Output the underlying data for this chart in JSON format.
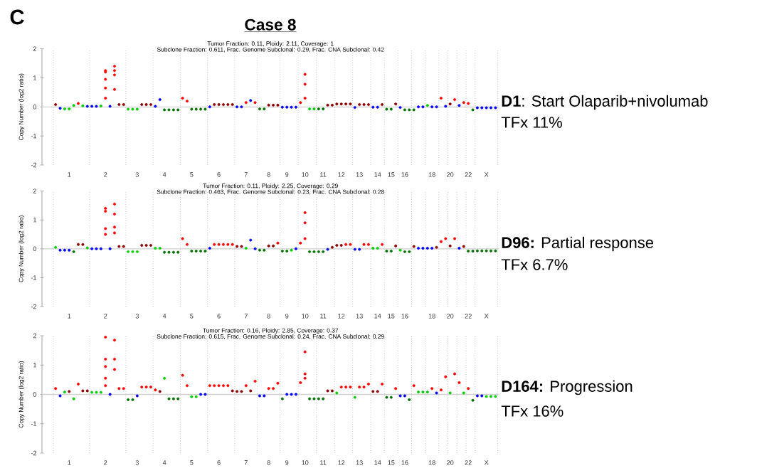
{
  "chart_data": [
    {
      "type": "scatter",
      "title": "Case 8",
      "subtitle": "Tumor Fraction: 0.11, Ploidy: 2.11, Coverage: 1",
      "ylabel": "Copy Number (log2 ratio)",
      "marker": "circle",
      "ylim": [
        -2,
        2
      ],
      "yticks": [
        -2,
        -1,
        0,
        1,
        2
      ],
      "categories": [
        null,
        null,
        null,
        "1",
        null,
        null,
        null,
        null,
        null,
        null,
        null,
        "2",
        null,
        null,
        null,
        null,
        null,
        null,
        "3",
        null,
        null,
        null,
        null,
        null,
        "4",
        null,
        null,
        null,
        null,
        null,
        "5",
        null,
        null,
        null,
        null,
        null,
        "6",
        null,
        null,
        null,
        null,
        null,
        "7",
        null,
        null,
        null,
        null,
        "8",
        null,
        null,
        null,
        "9",
        null,
        null,
        null,
        "10",
        null,
        null,
        null,
        "11",
        null,
        null,
        null,
        "12",
        null,
        null,
        null,
        "13",
        null,
        null,
        null,
        "14",
        null,
        null,
        "15",
        null,
        null,
        "16",
        null,
        null,
        null,
        null,
        null,
        "18",
        null,
        null,
        null,
        "20",
        null,
        null,
        null,
        "22",
        null,
        null,
        null,
        "X",
        null,
        null
      ],
      "annotations": [
        "Subclone Fraction: 0.611, Frac. Genome Subclonal: 0.29, Frac. CNA Subclonal: 0.42",
        "**D1**: Start Olaparib+nivolumab",
        "TFx 11%",
        "C"
      ],
      "ref_lines": [
        {
          "axis": "y",
          "value": 0,
          "color": "#d0d0d0",
          "line_style": "solid"
        }
      ],
      "series": [
        {
          "values": [
            0.08,
            -0.05,
            -0.07,
            -0.07,
            0.05,
            0.12,
            0.04,
            0.02,
            0.02,
            0.02,
            0.03,
            0.3,
            0.02,
            0.6,
            0.08,
            0.08,
            -0.08,
            -0.08,
            -0.08,
            0.08,
            0.08,
            0.08,
            0.02,
            0.25,
            -0.1,
            -0.1,
            -0.1,
            -0.1,
            0.3,
            0.2,
            -0.08,
            -0.08,
            -0.08,
            -0.08,
            0,
            0.08,
            0.08,
            0.08,
            0.08,
            0.08,
            0,
            0,
            0.15,
            0.22,
            0.15,
            -0.07,
            -0.07,
            0.06,
            0.06,
            0.06,
            -0.01,
            -0.01,
            -0.01,
            -0.01,
            0.15,
            0.3,
            -0.07,
            -0.07,
            -0.07,
            -0.07,
            0.06,
            0.06,
            0.1,
            0.1,
            0.1,
            0.1,
            -0.02,
            0.08,
            0.08,
            0.08,
            -0.01,
            -0.01,
            0.08,
            -0.08,
            -0.08,
            0.1,
            -0.02,
            -0.1,
            -0.1,
            -0.1,
            0,
            0,
            0.05,
            0,
            0,
            0.3,
            0.02,
            0.1,
            0.25,
            0.05,
            0.15,
            0.12,
            -0.1,
            -0.03,
            -0.03,
            -0.03,
            -0.03,
            -0.03
          ],
          "colors": [
            "#8b0000",
            "#0000ff",
            "#00cc00",
            "#00cc00",
            "#00cc00",
            "#ff0000",
            "#00cc00",
            "#0000ff",
            "#0000ff",
            "#0000ff",
            "#00cc00",
            "#ff0000",
            "#0000ff",
            "#ff0000",
            "#8b0000",
            "#8b0000",
            "#00cc00",
            "#00cc00",
            "#00cc00",
            "#8b0000",
            "#8b0000",
            "#8b0000",
            "#0000ff",
            "#0000ff",
            "#007000",
            "#007000",
            "#007000",
            "#007000",
            "#ff0000",
            "#ff0000",
            "#007000",
            "#007000",
            "#007000",
            "#007000",
            "#0000ff",
            "#8b0000",
            "#8b0000",
            "#8b0000",
            "#8b0000",
            "#8b0000",
            "#0000ff",
            "#0000ff",
            "#ff0000",
            "#0000ff",
            "#ff0000",
            "#007000",
            "#007000",
            "#8b0000",
            "#8b0000",
            "#8b0000",
            "#0000ff",
            "#0000ff",
            "#0000ff",
            "#0000ff",
            "#ff0000",
            "#ff0000",
            "#00cc00",
            "#00cc00",
            "#007000",
            "#007000",
            "#8b0000",
            "#8b0000",
            "#8b0000",
            "#8b0000",
            "#8b0000",
            "#8b0000",
            "#0000ff",
            "#8b0000",
            "#8b0000",
            "#8b0000",
            "#0000ff",
            "#0000ff",
            "#8b0000",
            "#007000",
            "#007000",
            "#8b0000",
            "#0000ff",
            "#007000",
            "#007000",
            "#007000",
            "#0000ff",
            "#0000ff",
            "#00cc00",
            "#0000ff",
            "#0000ff",
            "#ff0000",
            "#0000ff",
            "#8b0000",
            "#ff0000",
            "#0000ff",
            "#ff0000",
            "#ff0000",
            "#007000",
            "#0000ff",
            "#0000ff",
            "#0000ff",
            "#0000ff",
            "#0000ff"
          ]
        },
        {
          "color": "#ff0000",
          "values": [
            null,
            null,
            null,
            null,
            null,
            null,
            null,
            null,
            null,
            null,
            null,
            1.25,
            null,
            1.4,
            null,
            null,
            null,
            null,
            null,
            null,
            null,
            null,
            null,
            null,
            null,
            null,
            null,
            null,
            null,
            null,
            null,
            null,
            null,
            null,
            null,
            null,
            null,
            null,
            null,
            null,
            null,
            null,
            null,
            null,
            null,
            null,
            null,
            null,
            null,
            null,
            null,
            null,
            null,
            null,
            null,
            1.12,
            null,
            null,
            null,
            null,
            null,
            null,
            null,
            null,
            null,
            null,
            null,
            null,
            null,
            null,
            null,
            null,
            null,
            null,
            null,
            null,
            null,
            null,
            null,
            null,
            null,
            null,
            null,
            null,
            null,
            null,
            null,
            null,
            null,
            null,
            null,
            null,
            null,
            null,
            null,
            null,
            null,
            null
          ]
        },
        {
          "color": "#ff0000",
          "values": [
            null,
            null,
            null,
            null,
            null,
            null,
            null,
            null,
            null,
            null,
            null,
            1.2,
            null,
            1.25,
            null,
            null,
            null,
            null,
            null,
            null,
            null,
            null,
            null,
            null,
            null,
            null,
            null,
            null,
            null,
            null,
            null,
            null,
            null,
            null,
            null,
            null,
            null,
            null,
            null,
            null,
            null,
            null,
            null,
            null,
            null,
            null,
            null,
            null,
            null,
            null,
            null,
            null,
            null,
            null,
            null,
            0.78,
            null,
            null,
            null,
            null,
            null,
            null,
            null,
            null,
            null,
            null,
            null,
            null,
            null,
            null,
            null,
            null,
            null,
            null,
            null,
            null,
            null,
            null,
            null,
            null,
            null,
            null,
            null,
            null,
            null,
            null,
            null,
            null,
            null,
            null,
            null,
            null,
            null,
            null,
            null,
            null,
            null,
            null
          ]
        },
        {
          "color": "#ff0000",
          "values": [
            null,
            null,
            null,
            null,
            null,
            null,
            null,
            null,
            null,
            null,
            null,
            0.95,
            null,
            1.1,
            null,
            null,
            null,
            null,
            null,
            null,
            null,
            null,
            null,
            null,
            null,
            null,
            null,
            null,
            null,
            null,
            null,
            null,
            null,
            null,
            null,
            null,
            null,
            null,
            null,
            null,
            null,
            null,
            null,
            null,
            null,
            null,
            null,
            null,
            null,
            null,
            null,
            null,
            null,
            null,
            null,
            null,
            null,
            null,
            null,
            null,
            null,
            null,
            null,
            null,
            null,
            null,
            null,
            null,
            null,
            null,
            null,
            null,
            null,
            null,
            null,
            null,
            null,
            null,
            null,
            null,
            null,
            null,
            null,
            null,
            null,
            null,
            null,
            null,
            null,
            null,
            null,
            null,
            null,
            null,
            null,
            null,
            null,
            null
          ]
        },
        {
          "color": "#ff0000",
          "values": [
            null,
            null,
            null,
            null,
            null,
            null,
            null,
            null,
            null,
            null,
            null,
            0.65,
            null,
            null,
            null,
            null,
            null,
            null,
            null,
            null,
            null,
            null,
            null,
            null,
            null,
            null,
            null,
            null,
            null,
            null,
            null,
            null,
            null,
            null,
            null,
            null,
            null,
            null,
            null,
            null,
            null,
            null,
            null,
            null,
            null,
            null,
            null,
            null,
            null,
            null,
            null,
            null,
            null,
            null,
            null,
            null,
            null,
            null,
            null,
            null,
            null,
            null,
            null,
            null,
            null,
            null,
            null,
            null,
            null,
            null,
            null,
            null,
            null,
            null,
            null,
            null,
            null,
            null,
            null,
            null,
            null,
            null,
            null,
            null,
            null,
            null,
            null,
            null,
            null,
            null,
            null,
            null,
            null,
            null,
            null,
            null,
            null,
            null
          ]
        }
      ]
    },
    {
      "type": "scatter",
      "subtitle": "Tumor Fraction: 0.11, Ploidy: 2.25, Coverage: 0.29",
      "ylabel": "Copy Number (log2 ratio)",
      "marker": "circle",
      "ylim": [
        -2,
        2
      ],
      "yticks": [
        -2,
        -1,
        0,
        1,
        2
      ],
      "categories": [
        null,
        null,
        null,
        "1",
        null,
        null,
        null,
        null,
        null,
        null,
        null,
        "2",
        null,
        null,
        null,
        null,
        null,
        null,
        "3",
        null,
        null,
        null,
        null,
        null,
        "4",
        null,
        null,
        null,
        null,
        null,
        "5",
        null,
        null,
        null,
        null,
        null,
        "6",
        null,
        null,
        null,
        null,
        null,
        "7",
        null,
        null,
        null,
        null,
        "8",
        null,
        null,
        null,
        "9",
        null,
        null,
        null,
        "10",
        null,
        null,
        null,
        "11",
        null,
        null,
        null,
        "12",
        null,
        null,
        null,
        "13",
        null,
        null,
        null,
        "14",
        null,
        null,
        "15",
        null,
        null,
        "16",
        null,
        null,
        null,
        null,
        null,
        "18",
        null,
        null,
        null,
        "20",
        null,
        null,
        null,
        "22",
        null,
        null,
        null,
        "X",
        null,
        null
      ],
      "annotations": [
        "Subclone Fraction: 0.463, Frac. Genome Subclonal: 0.23, Frac. CNA Subclonal: 0.28",
        "**D96:** Partial response",
        "TFx 6.7%"
      ],
      "ref_lines": [
        {
          "axis": "y",
          "value": 0,
          "color": "#d0d0d0",
          "line_style": "solid"
        }
      ],
      "series": [
        {
          "values": [
            0.05,
            -0.05,
            -0.05,
            -0.05,
            -0.1,
            0.15,
            0.15,
            0.03,
            0,
            0,
            0,
            0.5,
            0,
            0.55,
            0.08,
            0.08,
            -0.1,
            -0.1,
            -0.1,
            0.12,
            0.12,
            0.12,
            0.02,
            0.02,
            -0.12,
            -0.12,
            -0.12,
            -0.12,
            0.35,
            0.15,
            -0.08,
            -0.08,
            -0.08,
            -0.08,
            0.02,
            0.15,
            0.15,
            0.15,
            0.15,
            0.15,
            0.08,
            0.08,
            0.02,
            0.3,
            0,
            -0.05,
            -0.05,
            0.1,
            0.1,
            0.2,
            -0.08,
            -0.08,
            -0.05,
            0,
            0.2,
            0.35,
            -0.1,
            -0.1,
            -0.1,
            -0.1,
            -0.02,
            0.05,
            0.12,
            0.12,
            0.15,
            0.15,
            -0.02,
            -0.02,
            0.15,
            0.15,
            0.02,
            0.02,
            0.15,
            -0.08,
            -0.08,
            0.1,
            -0.05,
            -0.1,
            -0.1,
            0.08,
            0.02,
            0.02,
            0.02,
            0.02,
            0.05,
            0.25,
            0.35,
            0.1,
            0.35,
            0.02,
            0.08,
            -0.08,
            -0.08,
            -0.07,
            -0.07,
            -0.07,
            -0.07,
            -0.07
          ],
          "colors": [
            "#00cc00",
            "#0000ff",
            "#0000ff",
            "#0000ff",
            "#007000",
            "#8b0000",
            "#8b0000",
            "#00cc00",
            "#0000ff",
            "#0000ff",
            "#0000ff",
            "#ff0000",
            "#0000ff",
            "#ff0000",
            "#8b0000",
            "#8b0000",
            "#00cc00",
            "#00cc00",
            "#00cc00",
            "#8b0000",
            "#8b0000",
            "#8b0000",
            "#00cc00",
            "#00cc00",
            "#007000",
            "#007000",
            "#007000",
            "#007000",
            "#ff0000",
            "#ff0000",
            "#007000",
            "#007000",
            "#007000",
            "#007000",
            "#0000ff",
            "#ff0000",
            "#ff0000",
            "#ff0000",
            "#ff0000",
            "#ff0000",
            "#8b0000",
            "#8b0000",
            "#00cc00",
            "#0000ff",
            "#0000ff",
            "#007000",
            "#007000",
            "#8b0000",
            "#8b0000",
            "#ff0000",
            "#007000",
            "#007000",
            "#00cc00",
            "#0000ff",
            "#ff0000",
            "#ff0000",
            "#007000",
            "#007000",
            "#007000",
            "#007000",
            "#0000ff",
            "#8b0000",
            "#8b0000",
            "#8b0000",
            "#ff0000",
            "#ff0000",
            "#0000ff",
            "#0000ff",
            "#ff0000",
            "#ff0000",
            "#00cc00",
            "#00cc00",
            "#ff0000",
            "#007000",
            "#007000",
            "#8b0000",
            "#00cc00",
            "#007000",
            "#007000",
            "#8b0000",
            "#0000ff",
            "#0000ff",
            "#0000ff",
            "#0000ff",
            "#8b0000",
            "#ff0000",
            "#ff0000",
            "#8b0000",
            "#ff0000",
            "#0000ff",
            "#8b0000",
            "#007000",
            "#007000",
            "#007000",
            "#007000",
            "#007000",
            "#007000",
            "#007000"
          ]
        },
        {
          "color": "#ff0000",
          "values": [
            null,
            null,
            null,
            null,
            null,
            null,
            null,
            null,
            null,
            null,
            null,
            1.4,
            null,
            1.55,
            null,
            null,
            null,
            null,
            null,
            null,
            null,
            null,
            null,
            null,
            null,
            null,
            null,
            null,
            null,
            null,
            null,
            null,
            null,
            null,
            null,
            null,
            null,
            null,
            null,
            null,
            null,
            null,
            null,
            null,
            null,
            null,
            null,
            null,
            null,
            null,
            null,
            null,
            null,
            null,
            null,
            1.25,
            null,
            null,
            null,
            null,
            null,
            null,
            null,
            null,
            null,
            null,
            null,
            null,
            null,
            null,
            null,
            null,
            null,
            null,
            null,
            null,
            null,
            null,
            null,
            null,
            null,
            null,
            null,
            null,
            null,
            null,
            null,
            null,
            null,
            null,
            null,
            null,
            null,
            null,
            null,
            null,
            null,
            null
          ]
        },
        {
          "color": "#ff0000",
          "values": [
            null,
            null,
            null,
            null,
            null,
            null,
            null,
            null,
            null,
            null,
            null,
            1.3,
            null,
            1.2,
            null,
            null,
            null,
            null,
            null,
            null,
            null,
            null,
            null,
            null,
            null,
            null,
            null,
            null,
            null,
            null,
            null,
            null,
            null,
            null,
            null,
            null,
            null,
            null,
            null,
            null,
            null,
            null,
            null,
            null,
            null,
            null,
            null,
            null,
            null,
            null,
            null,
            null,
            null,
            null,
            null,
            0.9,
            null,
            null,
            null,
            null,
            null,
            null,
            null,
            null,
            null,
            null,
            null,
            null,
            null,
            null,
            null,
            null,
            null,
            null,
            null,
            null,
            null,
            null,
            null,
            null,
            null,
            null,
            null,
            null,
            null,
            null,
            null,
            null,
            null,
            null,
            null,
            null,
            null,
            null,
            null,
            null,
            null,
            null
          ]
        },
        {
          "color": "#ff0000",
          "values": [
            null,
            null,
            null,
            null,
            null,
            null,
            null,
            null,
            null,
            null,
            null,
            0.7,
            null,
            0.75,
            null,
            null,
            null,
            null,
            null,
            null,
            null,
            null,
            null,
            null,
            null,
            null,
            null,
            null,
            null,
            null,
            null,
            null,
            null,
            null,
            null,
            null,
            null,
            null,
            null,
            null,
            null,
            null,
            null,
            null,
            null,
            null,
            null,
            null,
            null,
            null,
            null,
            null,
            null,
            null,
            null,
            null,
            null,
            null,
            null,
            null,
            null,
            null,
            null,
            null,
            null,
            null,
            null,
            null,
            null,
            null,
            null,
            null,
            null,
            null,
            null,
            null,
            null,
            null,
            null,
            null,
            null,
            null,
            null,
            null,
            null,
            null,
            null,
            null,
            null,
            null,
            null,
            null,
            null,
            null,
            null,
            null,
            null,
            null
          ]
        }
      ]
    },
    {
      "type": "scatter",
      "subtitle": "Tumor Fraction: 0.16, Ploidy: 2.85, Coverage: 0.37",
      "ylabel": "Copy Number (log2 ratio)",
      "marker": "circle",
      "ylim": [
        -2,
        2
      ],
      "yticks": [
        -2,
        -1,
        0,
        1,
        2
      ],
      "categories": [
        null,
        null,
        null,
        "1",
        null,
        null,
        null,
        null,
        null,
        null,
        null,
        "2",
        null,
        null,
        null,
        null,
        null,
        null,
        "3",
        null,
        null,
        null,
        null,
        null,
        "4",
        null,
        null,
        null,
        null,
        null,
        "5",
        null,
        null,
        null,
        null,
        null,
        "6",
        null,
        null,
        null,
        null,
        null,
        "7",
        null,
        null,
        null,
        null,
        "8",
        null,
        null,
        null,
        "9",
        null,
        null,
        null,
        "10",
        null,
        null,
        null,
        "11",
        null,
        null,
        null,
        "12",
        null,
        null,
        null,
        "13",
        null,
        null,
        null,
        "14",
        null,
        null,
        "15",
        null,
        null,
        "16",
        null,
        null,
        null,
        null,
        null,
        "18",
        null,
        null,
        null,
        "20",
        null,
        null,
        null,
        "22",
        null,
        null,
        null,
        "X",
        null,
        null
      ],
      "annotations": [
        "Subclone Fraction: 0.615, Frac. Genome Subclonal: 0.24, Frac. CNA Subclonal: 0.29",
        "**D164:** Progression",
        "TFx 16%"
      ],
      "ref_lines": [
        {
          "axis": "y",
          "value": 0,
          "color": "#d0d0d0",
          "line_style": "solid"
        }
      ],
      "series": [
        {
          "values": [
            0.2,
            -0.05,
            0.08,
            0.1,
            -0.15,
            0.35,
            0.12,
            0.12,
            0.07,
            0.07,
            0.07,
            0.3,
            0,
            0.85,
            0.2,
            0.2,
            -0.18,
            -0.18,
            -0.05,
            0.25,
            0.25,
            0.25,
            0.15,
            0.1,
            0.55,
            -0.15,
            -0.15,
            -0.15,
            0.65,
            0.3,
            -0.08,
            -0.08,
            0,
            0,
            0.3,
            0.3,
            0.3,
            0.3,
            0.3,
            0.12,
            0.1,
            0.1,
            0.3,
            0.12,
            0.45,
            -0.05,
            -0.05,
            0.2,
            0.2,
            0.38,
            -0.15,
            0,
            0,
            0,
            0.4,
            0.55,
            -0.15,
            -0.15,
            -0.15,
            -0.15,
            0.12,
            0.12,
            0.05,
            0.25,
            0.25,
            0.25,
            -0.1,
            0.25,
            0.25,
            0.35,
            0.1,
            0.1,
            0.35,
            -0.1,
            -0.1,
            0.2,
            -0.05,
            -0.05,
            -0.18,
            0.3,
            0.08,
            0.08,
            0.08,
            0.2,
            0.05,
            0.15,
            0.6,
            0.05,
            0.7,
            0.4,
            0.05,
            0.2,
            -0.2,
            -0.05,
            -0.05,
            -0.07,
            -0.07,
            -0.07
          ],
          "colors": [
            "#ff0000",
            "#0000ff",
            "#00cc00",
            "#8b0000",
            "#00cc00",
            "#ff0000",
            "#8b0000",
            "#8b0000",
            "#00cc00",
            "#00cc00",
            "#00cc00",
            "#ff0000",
            "#0000ff",
            "#ff0000",
            "#ff0000",
            "#ff0000",
            "#007000",
            "#007000",
            "#0000ff",
            "#ff0000",
            "#ff0000",
            "#ff0000",
            "#ff0000",
            "#8b0000",
            "#00cc00",
            "#007000",
            "#007000",
            "#007000",
            "#ff0000",
            "#ff0000",
            "#00cc00",
            "#00cc00",
            "#0000ff",
            "#0000ff",
            "#ff0000",
            "#ff0000",
            "#ff0000",
            "#ff0000",
            "#ff0000",
            "#8b0000",
            "#8b0000",
            "#8b0000",
            "#ff0000",
            "#8b0000",
            "#ff0000",
            "#0000ff",
            "#0000ff",
            "#ff0000",
            "#ff0000",
            "#ff0000",
            "#007000",
            "#0000ff",
            "#0000ff",
            "#0000ff",
            "#ff0000",
            "#ff0000",
            "#007000",
            "#007000",
            "#007000",
            "#007000",
            "#8b0000",
            "#8b0000",
            "#00cc00",
            "#ff0000",
            "#ff0000",
            "#ff0000",
            "#00cc00",
            "#ff0000",
            "#ff0000",
            "#ff0000",
            "#8b0000",
            "#8b0000",
            "#ff0000",
            "#007000",
            "#007000",
            "#ff0000",
            "#0000ff",
            "#0000ff",
            "#007000",
            "#ff0000",
            "#00cc00",
            "#00cc00",
            "#00cc00",
            "#ff0000",
            "#0000ff",
            "#ff0000",
            "#ff0000",
            "#00cc00",
            "#ff0000",
            "#ff0000",
            "#00cc00",
            "#ff0000",
            "#007000",
            "#0000ff",
            "#0000ff",
            "#00cc00",
            "#00cc00",
            "#00cc00"
          ]
        },
        {
          "color": "#ff0000",
          "values": [
            null,
            null,
            null,
            null,
            null,
            null,
            null,
            null,
            null,
            null,
            null,
            1.95,
            null,
            1.85,
            null,
            null,
            null,
            null,
            null,
            null,
            null,
            null,
            null,
            null,
            null,
            null,
            null,
            null,
            null,
            null,
            null,
            null,
            null,
            null,
            null,
            null,
            null,
            null,
            null,
            null,
            null,
            null,
            null,
            null,
            null,
            null,
            null,
            null,
            null,
            null,
            null,
            null,
            null,
            null,
            null,
            1.45,
            null,
            null,
            null,
            null,
            null,
            null,
            null,
            null,
            null,
            null,
            null,
            null,
            null,
            null,
            null,
            null,
            null,
            null,
            null,
            null,
            null,
            null,
            null,
            null,
            null,
            null,
            null,
            null,
            null,
            null,
            null,
            null,
            null,
            null,
            null,
            null,
            null,
            null,
            null,
            null,
            null,
            null
          ]
        },
        {
          "color": "#ff0000",
          "values": [
            null,
            null,
            null,
            null,
            null,
            null,
            null,
            null,
            null,
            null,
            null,
            1.2,
            null,
            1.2,
            null,
            null,
            null,
            null,
            null,
            null,
            null,
            null,
            null,
            null,
            null,
            null,
            null,
            null,
            null,
            null,
            null,
            null,
            null,
            null,
            null,
            null,
            null,
            null,
            null,
            null,
            null,
            null,
            null,
            null,
            null,
            null,
            null,
            null,
            null,
            null,
            null,
            null,
            null,
            null,
            null,
            0.7,
            null,
            null,
            null,
            null,
            null,
            null,
            null,
            null,
            null,
            null,
            null,
            null,
            null,
            null,
            null,
            null,
            null,
            null,
            null,
            null,
            null,
            null,
            null,
            null,
            null,
            null,
            null,
            null,
            null,
            null,
            null,
            null,
            null,
            null,
            null,
            null,
            null,
            null,
            null,
            null,
            null,
            null
          ]
        },
        {
          "color": "#ff0000",
          "values": [
            null,
            null,
            null,
            null,
            null,
            null,
            null,
            null,
            null,
            null,
            null,
            0.95,
            null,
            null,
            null,
            null,
            null,
            null,
            null,
            null,
            null,
            null,
            null,
            null,
            null,
            null,
            null,
            null,
            null,
            null,
            null,
            null,
            null,
            null,
            null,
            null,
            null,
            null,
            null,
            null,
            null,
            null,
            null,
            null,
            null,
            null,
            null,
            null,
            null,
            null,
            null,
            null,
            null,
            null,
            null,
            null,
            null,
            null,
            null,
            null,
            null,
            null,
            null,
            null,
            null,
            null,
            null,
            null,
            null,
            null,
            null,
            null,
            null,
            null,
            null,
            null,
            null,
            null,
            null,
            null,
            null,
            null,
            null,
            null,
            null,
            null,
            null,
            null,
            null,
            null,
            null,
            null,
            null,
            null,
            null,
            null,
            null,
            null
          ]
        },
        {
          "color": "#ff0000",
          "values": [
            null,
            null,
            null,
            null,
            null,
            null,
            null,
            null,
            null,
            null,
            null,
            0.55,
            null,
            null,
            null,
            null,
            null,
            null,
            null,
            null,
            null,
            null,
            null,
            null,
            null,
            null,
            null,
            null,
            null,
            null,
            null,
            null,
            null,
            null,
            null,
            null,
            null,
            null,
            null,
            null,
            null,
            null,
            null,
            null,
            null,
            null,
            null,
            null,
            null,
            null,
            null,
            null,
            null,
            null,
            null,
            null,
            null,
            null,
            null,
            null,
            null,
            null,
            null,
            null,
            null,
            null,
            null,
            null,
            null,
            null,
            null,
            null,
            null,
            null,
            null,
            null,
            null,
            null,
            null,
            null,
            null,
            null,
            null,
            null,
            null,
            null,
            null,
            null,
            null,
            null,
            null,
            null,
            null,
            null,
            null,
            null,
            null,
            null
          ]
        }
      ]
    }
  ]
}
